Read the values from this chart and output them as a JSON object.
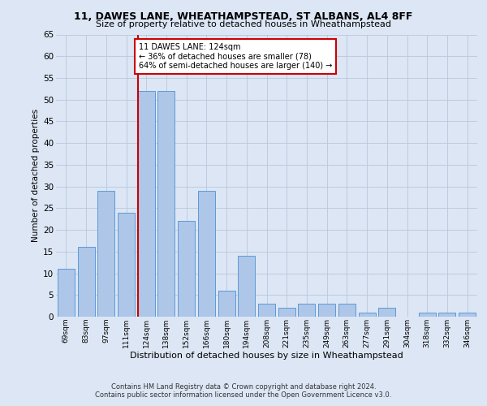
{
  "title1": "11, DAWES LANE, WHEATHAMPSTEAD, ST ALBANS, AL4 8FF",
  "title2": "Size of property relative to detached houses in Wheathampstead",
  "xlabel": "Distribution of detached houses by size in Wheathampstead",
  "ylabel": "Number of detached properties",
  "categories": [
    "69sqm",
    "83sqm",
    "97sqm",
    "111sqm",
    "124sqm",
    "138sqm",
    "152sqm",
    "166sqm",
    "180sqm",
    "194sqm",
    "208sqm",
    "221sqm",
    "235sqm",
    "249sqm",
    "263sqm",
    "277sqm",
    "291sqm",
    "304sqm",
    "318sqm",
    "332sqm",
    "346sqm"
  ],
  "values": [
    11,
    16,
    29,
    24,
    52,
    52,
    22,
    29,
    6,
    14,
    3,
    2,
    3,
    3,
    3,
    1,
    2,
    0,
    1,
    1,
    1
  ],
  "bar_color": "#aec6e8",
  "bar_edge_color": "#5b9bd5",
  "highlight_index": 4,
  "highlight_line_color": "#cc0000",
  "annotation_text": "11 DAWES LANE: 124sqm\n← 36% of detached houses are smaller (78)\n64% of semi-detached houses are larger (140) →",
  "annotation_box_color": "#ffffff",
  "annotation_box_edge_color": "#cc0000",
  "ylim": [
    0,
    65
  ],
  "yticks": [
    0,
    5,
    10,
    15,
    20,
    25,
    30,
    35,
    40,
    45,
    50,
    55,
    60,
    65
  ],
  "footnote1": "Contains HM Land Registry data © Crown copyright and database right 2024.",
  "footnote2": "Contains public sector information licensed under the Open Government Licence v3.0.",
  "bg_color": "#dce6f5",
  "plot_bg_color": "#dce6f5"
}
